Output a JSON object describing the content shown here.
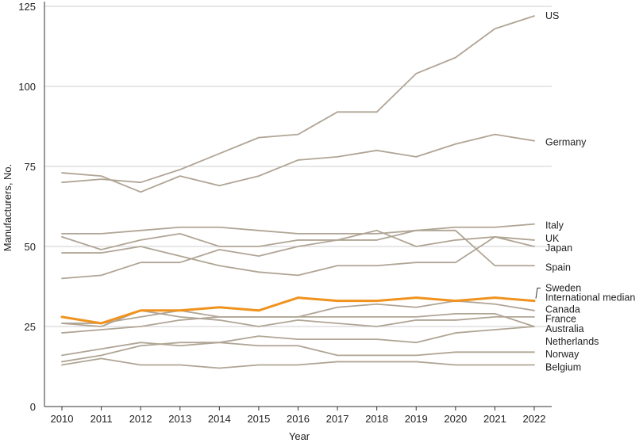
{
  "chart_data": {
    "type": "line",
    "title": "",
    "xlabel": "Year",
    "ylabel": "Manufacturers, No.",
    "ylim": [
      0,
      125
    ],
    "yticks": [
      0,
      25,
      50,
      75,
      100,
      125
    ],
    "grid": "horizontal",
    "legend": "labels at line ends (right)",
    "x": [
      2010,
      2011,
      2012,
      2013,
      2014,
      2015,
      2016,
      2017,
      2018,
      2019,
      2020,
      2021,
      2022
    ],
    "colors": {
      "default": "#b0a595",
      "highlight": "#f0931e"
    },
    "series": [
      {
        "name": "US",
        "values": [
          70,
          71,
          70,
          74,
          79,
          84,
          85,
          92,
          92,
          104,
          109,
          118,
          122
        ],
        "highlight": false
      },
      {
        "name": "Germany",
        "values": [
          73,
          72,
          67,
          72,
          69,
          72,
          77,
          78,
          80,
          78,
          82,
          85,
          83
        ],
        "highlight": false
      },
      {
        "name": "Italy",
        "values": [
          54,
          54,
          55,
          56,
          56,
          55,
          54,
          54,
          54,
          55,
          56,
          56,
          57
        ],
        "highlight": false
      },
      {
        "name": "UK",
        "values": [
          48,
          48,
          50,
          47,
          44,
          42,
          41,
          44,
          44,
          45,
          45,
          53,
          52
        ],
        "highlight": false
      },
      {
        "name": "Japan",
        "values": [
          53,
          49,
          52,
          54,
          50,
          50,
          52,
          52,
          55,
          50,
          52,
          53,
          50
        ],
        "highlight": false
      },
      {
        "name": "Spain",
        "values": [
          40,
          41,
          45,
          45,
          49,
          47,
          50,
          52,
          52,
          55,
          55,
          44,
          44
        ],
        "highlight": false
      },
      {
        "name": "Sweden",
        "values": [
          28,
          26,
          30,
          30,
          31,
          30,
          34,
          33,
          33,
          34,
          33,
          34,
          33
        ],
        "highlight": false
      },
      {
        "name": "International median",
        "values": [
          28,
          26,
          30,
          30,
          31,
          30,
          34,
          33,
          33,
          34,
          33,
          34,
          33
        ],
        "highlight": true
      },
      {
        "name": "Canada",
        "values": [
          26,
          26,
          28,
          30,
          28,
          28,
          28,
          31,
          32,
          31,
          33,
          32,
          30
        ],
        "highlight": false
      },
      {
        "name": "France",
        "values": [
          26,
          25,
          30,
          28,
          27,
          25,
          27,
          26,
          25,
          27,
          27,
          28,
          28
        ],
        "highlight": false
      },
      {
        "name": "Australia",
        "values": [
          23,
          24,
          25,
          27,
          28,
          28,
          28,
          28,
          28,
          28,
          29,
          29,
          25
        ],
        "highlight": false
      },
      {
        "name": "Netherlands",
        "values": [
          16,
          18,
          20,
          19,
          20,
          22,
          21,
          21,
          21,
          20,
          23,
          24,
          25
        ],
        "highlight": false
      },
      {
        "name": "Norway",
        "values": [
          14,
          16,
          19,
          20,
          20,
          19,
          19,
          16,
          16,
          16,
          17,
          17,
          17
        ],
        "highlight": false
      },
      {
        "name": "Belgium",
        "values": [
          13,
          15,
          13,
          13,
          12,
          13,
          13,
          14,
          14,
          14,
          13,
          13,
          13
        ],
        "highlight": false
      }
    ]
  },
  "series_labels": [
    {
      "text": "US",
      "series": "US",
      "y": 122
    },
    {
      "text": "Germany",
      "series": "Germany",
      "y": 82.5
    },
    {
      "text": "Italy",
      "series": "Italy",
      "y": 56.5
    },
    {
      "text": "UK",
      "series": "UK",
      "y": 52.5
    },
    {
      "text": "Japan",
      "series": "Japan",
      "y": 49.5
    },
    {
      "text": "Spain",
      "series": "Spain",
      "y": 43.5
    },
    {
      "text": "Sweden",
      "series": "Sweden",
      "y": 37
    },
    {
      "text": "International median",
      "series": "International median",
      "y": 34
    },
    {
      "text": "Canada",
      "series": "Canada",
      "y": 30.3
    },
    {
      "text": "France",
      "series": "France",
      "y": 27.3
    },
    {
      "text": "Australia",
      "series": "Australia",
      "y": 24.3
    },
    {
      "text": "Netherlands",
      "series": "Netherlands",
      "y": 20.3
    },
    {
      "text": "Norway",
      "series": "Norway",
      "y": 16.3
    },
    {
      "text": "Belgium",
      "series": "Belgium",
      "y": 12.3
    }
  ]
}
